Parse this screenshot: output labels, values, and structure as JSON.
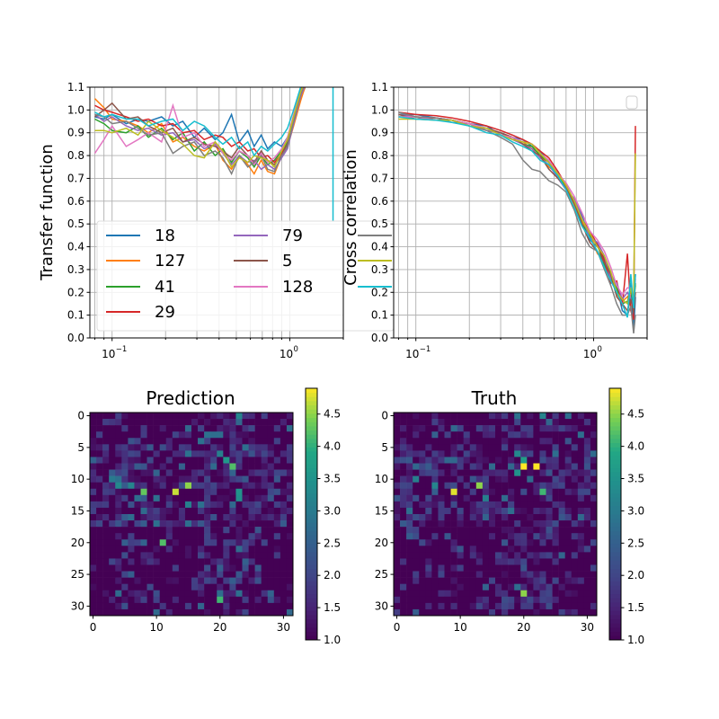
{
  "figure": {
    "background": "#ffffff",
    "series_colors": [
      "#1f77b4",
      "#ff7f0e",
      "#2ca02c",
      "#d62728",
      "#9467bd",
      "#8c564b",
      "#e377c2",
      "#7f7f7f",
      "#bcbd22",
      "#17becf"
    ]
  },
  "chart_data": [
    {
      "type": "line",
      "ylabel": "Transfer function",
      "xscale": "log",
      "xlim": [
        0.075,
        2.0
      ],
      "ylim": [
        0.0,
        1.1
      ],
      "yticks": [
        "0.0",
        "0.1",
        "0.2",
        "0.3",
        "0.4",
        "0.5",
        "0.6",
        "0.7",
        "0.8",
        "0.9",
        "1.0",
        "1.1"
      ],
      "xticks": [
        {
          "value": 0.1,
          "base": "10",
          "exp": "−1"
        },
        {
          "value": 1.0,
          "base": "10",
          "exp": "0"
        }
      ],
      "grid": "both-major-and-minor",
      "legend": {
        "placement": "lower-left, two columns, cropped by axes",
        "entries": [
          {
            "label": "18",
            "series": 0
          },
          {
            "label": "127",
            "series": 1
          },
          {
            "label": "41",
            "series": 2
          },
          {
            "label": "29",
            "series": 3
          },
          {
            "label": "79",
            "series": 4
          },
          {
            "label": "5",
            "series": 5
          },
          {
            "label": "128",
            "series": 6
          }
        ]
      },
      "x": [
        0.08,
        0.09,
        0.1,
        0.12,
        0.14,
        0.16,
        0.19,
        0.22,
        0.25,
        0.29,
        0.33,
        0.38,
        0.42,
        0.47,
        0.52,
        0.58,
        0.63,
        0.69,
        0.75,
        0.82,
        0.9,
        0.97,
        1.05,
        1.15,
        1.25
      ],
      "series": [
        {
          "values": [
            0.97,
            0.96,
            0.98,
            0.94,
            0.96,
            0.95,
            0.97,
            0.93,
            0.95,
            0.88,
            0.92,
            0.87,
            0.9,
            0.98,
            0.86,
            0.91,
            0.84,
            0.89,
            0.83,
            0.86,
            0.84,
            0.88,
            0.95,
            1.05,
            1.12
          ]
        },
        {
          "values": [
            1.05,
            1.01,
            0.96,
            0.95,
            0.93,
            0.9,
            0.94,
            0.86,
            0.88,
            0.84,
            0.82,
            0.85,
            0.78,
            0.74,
            0.8,
            0.76,
            0.72,
            0.78,
            0.73,
            0.72,
            0.8,
            0.84,
            0.93,
            1.04,
            1.13
          ]
        },
        {
          "values": [
            0.96,
            0.94,
            0.91,
            0.9,
            0.93,
            0.88,
            0.92,
            0.87,
            0.9,
            0.82,
            0.86,
            0.8,
            0.83,
            0.77,
            0.82,
            0.79,
            0.75,
            0.8,
            0.76,
            0.78,
            0.82,
            0.86,
            0.96,
            1.08,
            1.14
          ]
        },
        {
          "values": [
            1.02,
            1.0,
            0.99,
            0.97,
            0.95,
            0.96,
            0.93,
            0.94,
            0.9,
            0.91,
            0.87,
            0.89,
            0.88,
            0.84,
            0.86,
            0.82,
            0.83,
            0.79,
            0.8,
            0.77,
            0.81,
            0.85,
            0.97,
            1.09,
            1.15
          ]
        },
        {
          "values": [
            0.98,
            0.95,
            0.97,
            0.93,
            0.91,
            0.92,
            0.89,
            0.9,
            0.86,
            0.87,
            0.83,
            0.85,
            0.81,
            0.76,
            0.8,
            0.77,
            0.78,
            0.74,
            0.76,
            0.74,
            0.79,
            0.83,
            0.94,
            1.06,
            1.13
          ]
        },
        {
          "values": [
            0.97,
            1.0,
            1.03,
            0.96,
            0.97,
            0.93,
            0.9,
            0.92,
            0.86,
            0.88,
            0.85,
            0.84,
            0.82,
            0.79,
            0.84,
            0.8,
            0.77,
            0.82,
            0.78,
            0.76,
            0.8,
            0.85,
            0.96,
            1.08,
            1.14
          ]
        },
        {
          "values": [
            0.81,
            0.87,
            0.93,
            0.84,
            0.87,
            0.9,
            0.86,
            1.02,
            0.88,
            0.9,
            0.84,
            0.86,
            0.81,
            0.78,
            0.82,
            0.8,
            0.76,
            0.81,
            0.77,
            0.79,
            0.83,
            0.88,
            0.98,
            1.1,
            1.15
          ]
        },
        {
          "values": [
            0.98,
            0.97,
            0.94,
            0.95,
            0.92,
            0.89,
            0.9,
            0.81,
            0.84,
            0.86,
            0.8,
            0.82,
            0.79,
            0.72,
            0.8,
            0.75,
            0.77,
            0.8,
            0.74,
            0.73,
            0.8,
            0.84,
            0.95,
            1.07,
            1.14
          ]
        },
        {
          "values": [
            0.91,
            0.91,
            0.9,
            0.92,
            0.89,
            0.95,
            0.91,
            0.88,
            0.85,
            0.8,
            0.79,
            0.86,
            0.82,
            0.75,
            0.79,
            0.77,
            0.8,
            0.79,
            0.78,
            0.75,
            0.82,
            0.87,
            0.97,
            1.08,
            1.15
          ]
        },
        {
          "values": [
            0.99,
            0.97,
            0.98,
            0.96,
            0.96,
            0.93,
            0.95,
            0.96,
            0.91,
            0.95,
            0.93,
            0.88,
            0.85,
            0.88,
            0.83,
            0.86,
            0.8,
            0.84,
            0.82,
            0.85,
            0.88,
            0.92,
            1.0,
            1.1,
            1.16
          ]
        }
      ],
      "spike": {
        "x": 1.75,
        "ymax": 1.1,
        "ymin": 0.51
      }
    },
    {
      "type": "line",
      "ylabel": "Cross correlation",
      "xscale": "log",
      "xlim": [
        0.075,
        2.0
      ],
      "ylim": [
        0.0,
        1.1
      ],
      "yticks": [
        "0.0",
        "0.1",
        "0.2",
        "0.3",
        "0.4",
        "0.5",
        "0.6",
        "0.7",
        "0.8",
        "0.9",
        "1.0",
        "1.1"
      ],
      "xticks": [
        {
          "value": 0.1,
          "base": "10",
          "exp": "−1"
        },
        {
          "value": 1.0,
          "base": "10",
          "exp": "0"
        }
      ],
      "grid": "both-major-and-minor",
      "legend": {
        "placement": "upper-right, empty"
      },
      "x": [
        0.08,
        0.1,
        0.13,
        0.16,
        0.2,
        0.25,
        0.3,
        0.35,
        0.4,
        0.45,
        0.5,
        0.56,
        0.63,
        0.7,
        0.78,
        0.86,
        0.95,
        1.05,
        1.15,
        1.25,
        1.35,
        1.45,
        1.55,
        1.62,
        1.68,
        1.72
      ],
      "base": [
        0.98,
        0.97,
        0.965,
        0.955,
        0.94,
        0.92,
        0.9,
        0.88,
        0.86,
        0.84,
        0.81,
        0.77,
        0.72,
        0.66,
        0.6,
        0.52,
        0.45,
        0.4,
        0.34,
        0.26,
        0.2,
        0.14,
        0.12,
        0.22,
        0.08,
        0.18
      ],
      "offsets": [
        [
          0.0,
          0.01,
          0.0,
          -0.01,
          0.0,
          0.01,
          -0.01,
          0.0,
          0.01,
          0.0,
          0.01,
          0.0,
          -0.01,
          0.01,
          0.0,
          0.02,
          -0.02,
          0.0,
          0.01,
          0.02,
          0.03,
          -0.02,
          -0.02,
          0.02,
          -0.05,
          0.0
        ],
        [
          -0.01,
          0.0,
          0.0,
          0.0,
          -0.01,
          0.0,
          0.0,
          -0.01,
          0.0,
          -0.01,
          0.0,
          -0.02,
          0.0,
          0.0,
          -0.02,
          -0.01,
          0.01,
          -0.03,
          0.0,
          0.01,
          -0.01,
          0.02,
          0.06,
          -0.02,
          0.1,
          0.05
        ],
        [
          0.0,
          0.0,
          -0.01,
          0.0,
          0.0,
          -0.01,
          0.0,
          0.0,
          -0.01,
          0.0,
          -0.01,
          0.0,
          0.01,
          -0.01,
          0.01,
          -0.02,
          0.0,
          0.01,
          -0.02,
          0.0,
          0.02,
          0.01,
          0.04,
          0.0,
          0.05,
          0.06
        ],
        [
          0.01,
          0.01,
          0.01,
          0.01,
          0.01,
          0.01,
          0.01,
          0.01,
          0.01,
          0.01,
          0.01,
          0.02,
          0.01,
          0.01,
          0.0,
          0.0,
          0.02,
          0.01,
          0.0,
          -0.02,
          0.05,
          0.0,
          0.25,
          -0.1,
          0.0,
          0.75
        ],
        [
          0.0,
          0.0,
          0.0,
          0.0,
          0.0,
          -0.01,
          0.0,
          -0.01,
          -0.01,
          -0.01,
          -0.02,
          -0.01,
          -0.02,
          -0.01,
          0.01,
          0.01,
          -0.01,
          0.02,
          0.02,
          0.0,
          0.04,
          0.03,
          0.08,
          -0.05,
          0.06,
          0.1
        ],
        [
          0.0,
          -0.01,
          0.0,
          0.0,
          0.0,
          0.0,
          0.0,
          0.0,
          -0.01,
          -0.02,
          -0.01,
          -0.03,
          -0.02,
          0.0,
          -0.01,
          -0.02,
          -0.03,
          -0.02,
          -0.01,
          0.02,
          -0.02,
          0.01,
          0.0,
          -0.05,
          0.03,
          0.02
        ],
        [
          -0.01,
          0.0,
          -0.01,
          0.0,
          0.0,
          0.0,
          -0.01,
          0.0,
          0.0,
          0.01,
          0.0,
          0.01,
          0.0,
          0.02,
          0.02,
          0.03,
          0.02,
          0.03,
          0.04,
          0.05,
          0.03,
          0.05,
          0.1,
          0.0,
          0.1,
          0.08
        ],
        [
          0.01,
          0.0,
          0.0,
          0.0,
          -0.01,
          -0.01,
          -0.02,
          -0.03,
          -0.08,
          -0.1,
          -0.08,
          -0.08,
          -0.05,
          -0.02,
          -0.04,
          -0.06,
          -0.05,
          -0.02,
          -0.04,
          -0.03,
          -0.05,
          -0.04,
          -0.02,
          -0.08,
          -0.06,
          -0.08
        ],
        [
          -0.02,
          -0.01,
          -0.01,
          0.0,
          -0.01,
          0.0,
          -0.01,
          -0.01,
          0.0,
          0.01,
          0.0,
          0.0,
          0.0,
          0.01,
          0.0,
          0.0,
          0.01,
          0.0,
          0.02,
          0.03,
          0.0,
          0.03,
          0.03,
          0.0,
          0.08,
          0.63
        ],
        [
          -0.01,
          -0.01,
          -0.01,
          -0.01,
          -0.01,
          -0.02,
          -0.01,
          -0.02,
          -0.02,
          -0.02,
          -0.03,
          -0.01,
          -0.01,
          -0.01,
          -0.03,
          -0.03,
          -0.01,
          -0.02,
          -0.03,
          -0.01,
          0.0,
          0.01,
          -0.03,
          0.06,
          0.05,
          0.1
        ]
      ]
    },
    {
      "type": "heatmap",
      "title": "Prediction",
      "size": 32,
      "xticks": [
        "0",
        "10",
        "20",
        "30"
      ],
      "yticks": [
        "0",
        "5",
        "10",
        "15",
        "20",
        "25",
        "30"
      ],
      "colorbar": {
        "range": [
          1.0,
          4.9
        ],
        "ticks": [
          "1.0",
          "1.5",
          "2.0",
          "2.5",
          "3.0",
          "3.5",
          "4.0",
          "4.5"
        ]
      },
      "seed": 7,
      "hot": [
        [
          8,
          22,
          4.2
        ],
        [
          7,
          21,
          3.6
        ],
        [
          12,
          13,
          4.7
        ],
        [
          11,
          15,
          4.5
        ],
        [
          12,
          8,
          4.3
        ],
        [
          11,
          4,
          3.3
        ],
        [
          11,
          6,
          3.2
        ],
        [
          20,
          11,
          4.2
        ],
        [
          29,
          20,
          4.1
        ],
        [
          12,
          23,
          3.5
        ],
        [
          13,
          23,
          3.4
        ],
        [
          0,
          23,
          3.2
        ],
        [
          6,
          20,
          3.1
        ],
        [
          14,
          15,
          3.1
        ],
        [
          10,
          3,
          3.0
        ]
      ]
    },
    {
      "type": "heatmap",
      "title": "Truth",
      "size": 32,
      "xticks": [
        "0",
        "10",
        "20",
        "30"
      ],
      "yticks": [
        "0",
        "5",
        "10",
        "15",
        "20",
        "25",
        "30"
      ],
      "colorbar": {
        "range": [
          1.0,
          4.9
        ],
        "ticks": [
          "1.0",
          "1.5",
          "2.0",
          "2.5",
          "3.0",
          "3.5",
          "4.0",
          "4.5"
        ]
      },
      "seed": 13,
      "hot": [
        [
          8,
          20,
          4.9
        ],
        [
          8,
          22,
          4.9
        ],
        [
          12,
          9,
          4.8
        ],
        [
          11,
          13,
          4.5
        ],
        [
          12,
          23,
          4.1
        ],
        [
          7,
          20,
          3.7
        ],
        [
          28,
          20,
          4.5
        ],
        [
          9,
          19,
          3.5
        ],
        [
          6,
          19,
          3.3
        ],
        [
          0,
          23,
          3.2
        ],
        [
          10,
          3,
          3.1
        ],
        [
          11,
          6,
          3.2
        ],
        [
          13,
          14,
          3.1
        ]
      ]
    }
  ]
}
